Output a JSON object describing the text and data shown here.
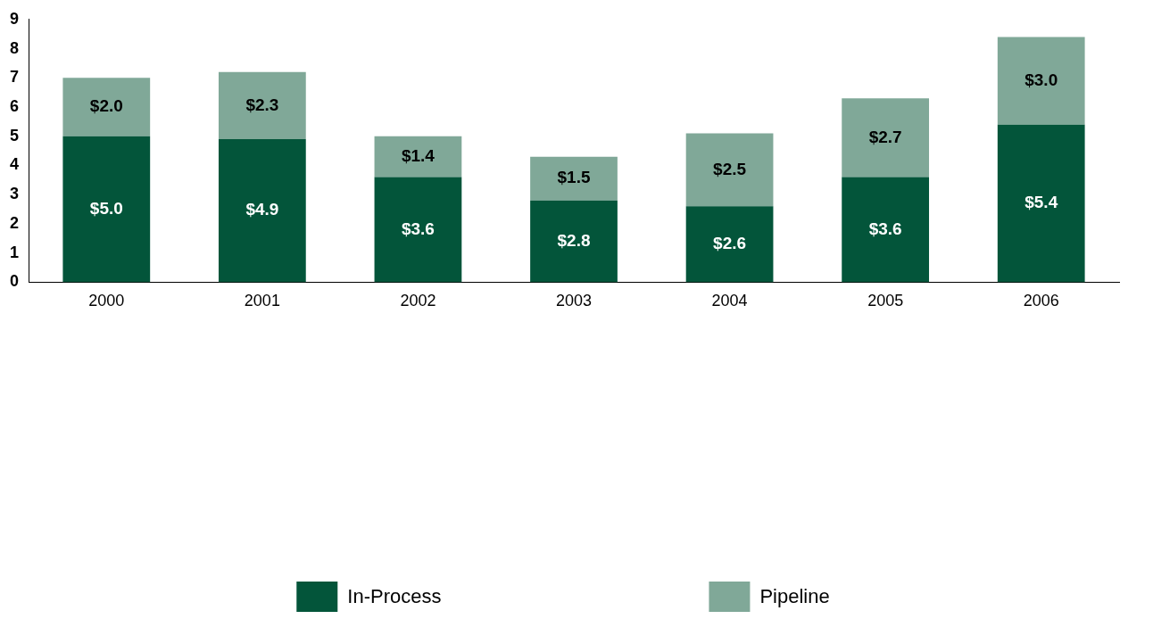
{
  "chart_data": {
    "type": "bar",
    "stacked": true,
    "categories": [
      "2000",
      "2001",
      "2002",
      "2003",
      "2004",
      "2005",
      "2006"
    ],
    "series": [
      {
        "name": "In-Process",
        "color": "#03553a",
        "values": [
          5.0,
          4.9,
          3.6,
          2.8,
          2.6,
          3.6,
          5.4
        ],
        "value_labels": [
          "$5.0",
          "$4.9",
          "$3.6",
          "$2.8",
          "$2.6",
          "$3.6",
          "$5.4"
        ]
      },
      {
        "name": "Pipeline",
        "color": "#80a898",
        "values": [
          2.0,
          2.3,
          1.4,
          1.5,
          2.5,
          2.7,
          3.0
        ],
        "value_labels": [
          "$2.0",
          "$2.3",
          "$1.4",
          "$1.5",
          "$2.5",
          "$2.7",
          "$3.0"
        ]
      }
    ],
    "ylim": [
      0,
      9
    ],
    "yticks": [
      0,
      1,
      2,
      3,
      4,
      5,
      6,
      7,
      8,
      9
    ],
    "grid": false,
    "legend": "bottom"
  }
}
